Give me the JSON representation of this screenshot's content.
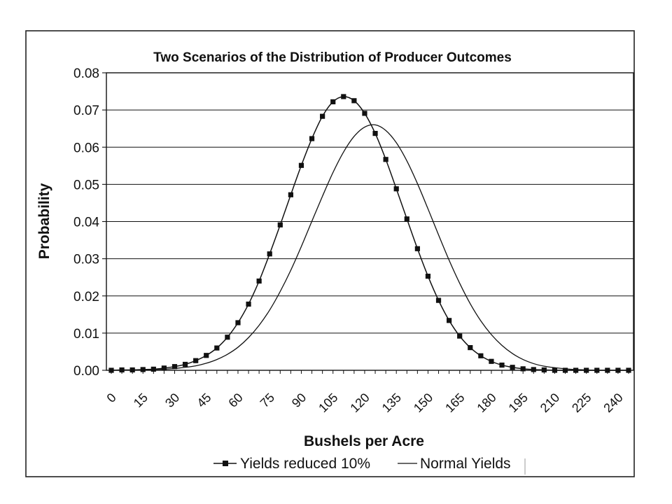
{
  "chart_data": {
    "type": "line",
    "title": "Two Scenarios of the Distribution of Producer Outcomes",
    "xlabel": "Bushels per Acre",
    "ylabel": "Probability",
    "xlim": [
      0,
      245
    ],
    "ylim": [
      0,
      0.08
    ],
    "grid": "horizontal",
    "legend_position": "bottom",
    "x_tick_labels": [
      "0",
      "15",
      "30",
      "45",
      "60",
      "75",
      "90",
      "105",
      "120",
      "135",
      "150",
      "165",
      "180",
      "195",
      "210",
      "225",
      "240"
    ],
    "y_tick_labels": [
      "0.00",
      "0.01",
      "0.02",
      "0.03",
      "0.04",
      "0.05",
      "0.06",
      "0.07",
      "0.08"
    ],
    "x": [
      0,
      5,
      10,
      15,
      20,
      25,
      30,
      35,
      40,
      45,
      50,
      55,
      60,
      65,
      70,
      75,
      80,
      85,
      90,
      95,
      100,
      105,
      110,
      115,
      120,
      125,
      130,
      135,
      140,
      145,
      150,
      155,
      160,
      165,
      170,
      175,
      180,
      185,
      190,
      195,
      200,
      205,
      210,
      215,
      220,
      225,
      230,
      235,
      240,
      245
    ],
    "series": [
      {
        "name": "Yields reduced 10%",
        "marker": "square",
        "color": "#111111",
        "values": [
          0.0,
          0.0001,
          0.0001,
          0.0002,
          0.0003,
          0.0006,
          0.001,
          0.0016,
          0.0026,
          0.004,
          0.006,
          0.0089,
          0.0128,
          0.0178,
          0.024,
          0.0313,
          0.0391,
          0.0472,
          0.0551,
          0.0623,
          0.0683,
          0.0722,
          0.0736,
          0.0725,
          0.0691,
          0.0637,
          0.0567,
          0.0488,
          0.0407,
          0.0327,
          0.0253,
          0.0188,
          0.0134,
          0.0092,
          0.0061,
          0.0039,
          0.0024,
          0.0014,
          0.0008,
          0.0004,
          0.0002,
          0.0001,
          0.0,
          0.0,
          0.0,
          0.0,
          0.0,
          0.0,
          0.0,
          0.0
        ]
      },
      {
        "name": "Normal Yields",
        "marker": "none",
        "color": "#111111",
        "values": [
          0.0,
          0.0,
          0.0001,
          0.0001,
          0.0002,
          0.0003,
          0.0005,
          0.0008,
          0.0012,
          0.0019,
          0.0029,
          0.0043,
          0.0062,
          0.0088,
          0.0121,
          0.0162,
          0.0212,
          0.0269,
          0.0333,
          0.0401,
          0.0468,
          0.0532,
          0.0587,
          0.0629,
          0.0654,
          0.066,
          0.0645,
          0.0612,
          0.0563,
          0.0502,
          0.0434,
          0.0364,
          0.0296,
          0.0234,
          0.0179,
          0.0133,
          0.0096,
          0.0067,
          0.0045,
          0.0029,
          0.0018,
          0.0011,
          0.0007,
          0.0004,
          0.0002,
          0.0001,
          0.0,
          0.0,
          0.0,
          0.0
        ]
      }
    ]
  }
}
